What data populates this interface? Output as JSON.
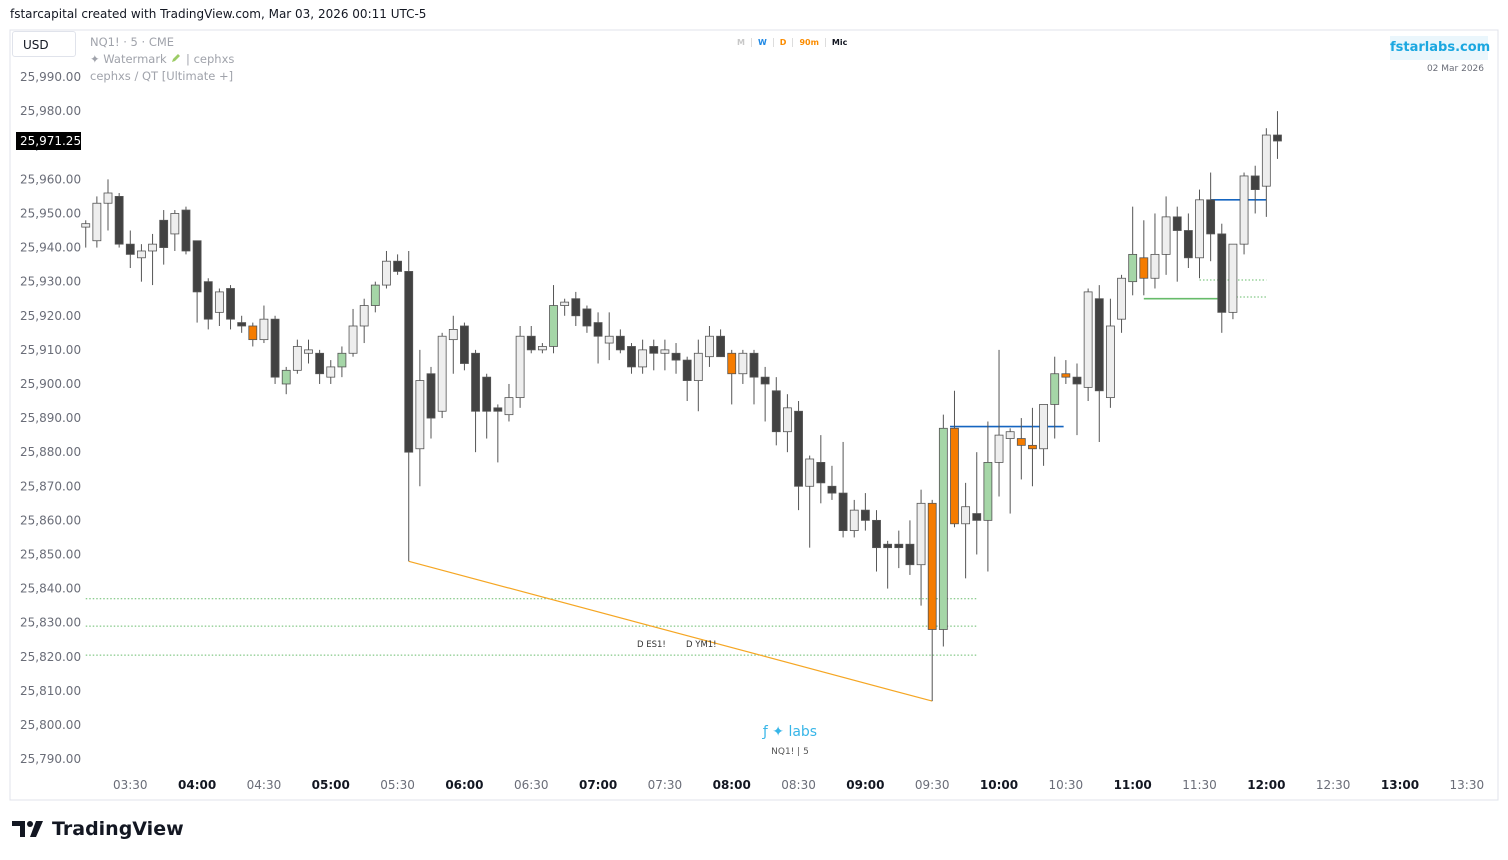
{
  "header": {
    "attribution": "fstarcapital created with TradingView.com, Mar 03, 2026 00:11 UTC-5"
  },
  "toolbar": {
    "currency": "USD"
  },
  "legend": {
    "symbol": "NQ1! · 5 · CME",
    "watermark": "✦ Watermark",
    "watermark_author": "| cephxs",
    "indicator": "cephxs / QT [Ultimate +]"
  },
  "timeframes": [
    {
      "label": "M",
      "color": "#c8c8c8"
    },
    {
      "label": "W",
      "color": "#1e88e5"
    },
    {
      "label": "D",
      "color": "#fb8c00"
    },
    {
      "label": "90m",
      "color": "#fb8c00"
    },
    {
      "label": "Mic",
      "color": "#131722"
    }
  ],
  "brand": {
    "site": "fstarlabs.com",
    "date": "02 Mar 2026",
    "logo": "ƒ ✦ labs",
    "caption": "NQ1! | 5"
  },
  "annotations": [
    "D ES1!",
    "D YM1!"
  ],
  "footer": {
    "brand": "TradingView"
  },
  "chart_data": {
    "type": "candlestick",
    "xlim": [
      "02:36",
      "13:44"
    ],
    "xticks": [
      "03:30",
      "04:00",
      "04:30",
      "05:00",
      "05:30",
      "06:00",
      "06:30",
      "07:00",
      "07:30",
      "08:00",
      "08:30",
      "09:00",
      "09:30",
      "10:00",
      "10:30",
      "11:00",
      "11:30",
      "12:00",
      "12:30",
      "13:00",
      "13:30"
    ],
    "ylim": [
      25778,
      26003.8
    ],
    "yticks": [
      {
        "value": 25790,
        "label": "25,790.00"
      },
      {
        "value": 25800,
        "label": "25,800.00"
      },
      {
        "value": 25810,
        "label": "25,810.00"
      },
      {
        "value": 25820,
        "label": "25,820.00"
      },
      {
        "value": 25830,
        "label": "25,830.00"
      },
      {
        "value": 25840,
        "label": "25,840.00"
      },
      {
        "value": 25850,
        "label": "25,850.00"
      },
      {
        "value": 25860,
        "label": "25,860.00"
      },
      {
        "value": 25870,
        "label": "25,870.00"
      },
      {
        "value": 25880,
        "label": "25,880.00"
      },
      {
        "value": 25890,
        "label": "25,890.00"
      },
      {
        "value": 25900,
        "label": "25,900.00"
      },
      {
        "value": 25910,
        "label": "25,910.00"
      },
      {
        "value": 25920,
        "label": "25,920.00"
      },
      {
        "value": 25930,
        "label": "25,930.00"
      },
      {
        "value": 25940,
        "label": "25,940.00"
      },
      {
        "value": 25950,
        "label": "25,950.00"
      },
      {
        "value": 25960,
        "label": "25,960.00"
      },
      {
        "value": 25970,
        "label": "25,970.00"
      },
      {
        "value": 25980,
        "label": "25,980.00"
      },
      {
        "value": 25990,
        "label": "25,990.00"
      }
    ],
    "last_price": {
      "value": 25971.25,
      "label": "25,971.25"
    },
    "x": [
      "03:10",
      "03:15",
      "03:20",
      "03:25",
      "03:30",
      "03:35",
      "03:40",
      "03:45",
      "03:50",
      "03:55",
      "04:00",
      "04:05",
      "04:10",
      "04:15",
      "04:20",
      "04:25",
      "04:30",
      "04:35",
      "04:40",
      "04:45",
      "04:50",
      "04:55",
      "05:00",
      "05:05",
      "05:10",
      "05:15",
      "05:20",
      "05:25",
      "05:30",
      "05:35",
      "05:40",
      "05:45",
      "05:50",
      "05:55",
      "06:00",
      "06:05",
      "06:10",
      "06:15",
      "06:20",
      "06:25",
      "06:30",
      "06:35",
      "06:40",
      "06:45",
      "06:50",
      "06:55",
      "07:00",
      "07:05",
      "07:10",
      "07:15",
      "07:20",
      "07:25",
      "07:30",
      "07:35",
      "07:40",
      "07:45",
      "07:50",
      "07:55",
      "08:00",
      "08:05",
      "08:10",
      "08:15",
      "08:20",
      "08:25",
      "08:30",
      "08:35",
      "08:40",
      "08:45",
      "08:50",
      "08:55",
      "09:00",
      "09:05",
      "09:10",
      "09:15",
      "09:20",
      "09:25",
      "09:30",
      "09:35",
      "09:40",
      "09:45",
      "09:50",
      "09:55",
      "10:00",
      "10:05",
      "10:10",
      "10:15",
      "10:20",
      "10:25",
      "10:30",
      "10:35",
      "10:40",
      "10:45",
      "10:50",
      "10:55",
      "11:00",
      "11:05",
      "11:10",
      "11:15",
      "11:20",
      "11:25",
      "11:30",
      "11:35",
      "11:40",
      "11:45",
      "11:50",
      "11:55",
      "12:00",
      "12:05"
    ],
    "series": [
      {
        "open": [
          25946,
          25942,
          25953,
          25955,
          25941,
          25937,
          25939,
          25948,
          25944,
          25951,
          25942,
          25930,
          25921,
          25928,
          25918,
          25917,
          25913,
          25919,
          25900,
          25904,
          25910,
          25909,
          25902,
          25905,
          25909,
          25917,
          25923,
          25929,
          25936,
          25933,
          25881,
          25903,
          25892,
          25913,
          25917,
          25909,
          25902,
          25893,
          25891,
          25896,
          25914,
          25910,
          25911,
          25923,
          25925,
          25922,
          25918,
          25912,
          25914,
          25911,
          25905,
          25911,
          25909,
          25909,
          25907,
          25901,
          25908,
          25914,
          25909,
          25903,
          25909,
          25902,
          25898,
          25886,
          25892,
          25870,
          25877,
          25870,
          25868,
          25857,
          25863,
          25860,
          25853,
          25853,
          25853,
          25847,
          25865,
          25828,
          25887,
          25859,
          25862,
          25860,
          25877,
          25884,
          25884,
          25882,
          25881,
          25894,
          25903,
          25902,
          25899,
          25925,
          25896,
          25919,
          25930,
          25937,
          25931,
          25938,
          25949,
          25945,
          25937,
          25954,
          25944,
          25921,
          25941,
          25961,
          25958,
          25973
        ],
        "high": [
          25948,
          25955,
          25960,
          25956,
          25945,
          25941,
          25944,
          25951,
          25951,
          25952,
          25942,
          25931,
          25928,
          25929,
          25920,
          25918,
          25923,
          25920,
          25905,
          25913,
          25913,
          25910,
          25907,
          25911,
          25922,
          25925,
          25930,
          25939,
          25938,
          25939,
          25910,
          25905,
          25915,
          25920,
          25918,
          25910,
          25903,
          25894,
          25900,
          25917,
          25917,
          25912,
          25929,
          25925,
          25927,
          25923,
          25921,
          25921,
          25916,
          25912,
          25913,
          25913,
          25913,
          25912,
          25908,
          25913,
          25917,
          25916,
          25910,
          25910,
          25910,
          25905,
          25902,
          25897,
          25895,
          25879,
          25885,
          25876,
          25883,
          25866,
          25868,
          25863,
          25854,
          25857,
          25860,
          25869,
          25866,
          25891,
          25898,
          25871,
          25880,
          25889,
          25910,
          25887,
          25890,
          25893,
          25893,
          25908,
          25907,
          25906,
          25928,
          25929,
          25925,
          25932,
          25952,
          25948,
          25950,
          25955,
          25952,
          25950,
          25957,
          25962,
          25947,
          25941,
          25962,
          25964,
          25975,
          25980
        ],
        "low": [
          25940,
          25940,
          25945,
          25940,
          25934,
          25930,
          25929,
          25935,
          25939,
          25938,
          25918,
          25916,
          25917,
          25916,
          25915,
          25911,
          25912,
          25900,
          25897,
          25903,
          25906,
          25900,
          25900,
          25902,
          25908,
          25912,
          25921,
          25928,
          25932,
          25848,
          25870,
          25884,
          25890,
          25903,
          25904,
          25880,
          25884,
          25877,
          25889,
          25893,
          25909,
          25909,
          25909,
          25920,
          25917,
          25915,
          25906,
          25907,
          25909,
          25903,
          25903,
          25904,
          25904,
          25903,
          25895,
          25892,
          25905,
          25908,
          25894,
          25900,
          25894,
          25889,
          25882,
          25880,
          25863,
          25852,
          25865,
          25866,
          25855,
          25855,
          25857,
          25845,
          25840,
          25846,
          25844,
          25835,
          25807,
          25823,
          25858,
          25843,
          25850,
          25845,
          25867,
          25862,
          25872,
          25870,
          25876,
          25884,
          25900,
          25885,
          25895,
          25883,
          25893,
          25915,
          25926,
          25926,
          25928,
          25932,
          25930,
          25934,
          25931,
          25936,
          25915,
          25919,
          25938,
          25950,
          25949,
          25966
        ],
        "close": [
          25947,
          25953,
          25956,
          25941,
          25938,
          25939,
          25941,
          25940,
          25950,
          25939,
          25927,
          25919,
          25927,
          25919,
          25917,
          25913,
          25919,
          25902,
          25904,
          25911,
          25909,
          25903,
          25905,
          25909,
          25917,
          25923,
          25929,
          25936,
          25933,
          25880,
          25901,
          25890,
          25914,
          25916,
          25906,
          25892,
          25892,
          25892,
          25896,
          25914,
          25910,
          25911,
          25923,
          25924,
          25920,
          25917,
          25914,
          25914,
          25910,
          25905,
          25910,
          25909,
          25910,
          25907,
          25901,
          25909,
          25914,
          25908,
          25903,
          25909,
          25902,
          25900,
          25886,
          25893,
          25870,
          25878,
          25871,
          25868,
          25857,
          25863,
          25860,
          25852,
          25852,
          25852,
          25847,
          25865,
          25828,
          25887,
          25859,
          25864,
          25860,
          25877,
          25885,
          25886,
          25882,
          25881,
          25894,
          25903,
          25902,
          25900,
          25927,
          25898,
          25917,
          25931,
          25938,
          25931,
          25938,
          25949,
          25945,
          25937,
          25954,
          25944,
          25921,
          25941,
          25961,
          25957,
          25973,
          25971.25
        ],
        "colors": [
          "#eeeeee",
          "#eeeeee",
          "#eeeeee",
          "#424242",
          "#424242",
          "#eeeeee",
          "#eeeeee",
          "#424242",
          "#eeeeee",
          "#424242",
          "#424242",
          "#424242",
          "#eeeeee",
          "#424242",
          "#424242",
          "#f57c00",
          "#eeeeee",
          "#424242",
          "#a5d6a7",
          "#eeeeee",
          "#eeeeee",
          "#424242",
          "#eeeeee",
          "#a5d6a7",
          "#eeeeee",
          "#eeeeee",
          "#a5d6a7",
          "#eeeeee",
          "#424242",
          "#424242",
          "#eeeeee",
          "#424242",
          "#eeeeee",
          "#eeeeee",
          "#424242",
          "#424242",
          "#424242",
          "#424242",
          "#eeeeee",
          "#eeeeee",
          "#424242",
          "#eeeeee",
          "#a5d6a7",
          "#eeeeee",
          "#424242",
          "#424242",
          "#424242",
          "#eeeeee",
          "#424242",
          "#424242",
          "#eeeeee",
          "#424242",
          "#eeeeee",
          "#424242",
          "#424242",
          "#eeeeee",
          "#eeeeee",
          "#424242",
          "#f57c00",
          "#eeeeee",
          "#424242",
          "#424242",
          "#424242",
          "#eeeeee",
          "#424242",
          "#eeeeee",
          "#424242",
          "#424242",
          "#424242",
          "#eeeeee",
          "#424242",
          "#424242",
          "#424242",
          "#424242",
          "#424242",
          "#eeeeee",
          "#f57c00",
          "#a5d6a7",
          "#f57c00",
          "#eeeeee",
          "#424242",
          "#a5d6a7",
          "#eeeeee",
          "#eeeeee",
          "#f57c00",
          "#f57c00",
          "#eeeeee",
          "#a5d6a7",
          "#f57c00",
          "#424242",
          "#eeeeee",
          "#424242",
          "#eeeeee",
          "#eeeeee",
          "#a5d6a7",
          "#f57c00",
          "#eeeeee",
          "#eeeeee",
          "#424242",
          "#424242",
          "#eeeeee",
          "#424242",
          "#424242",
          "#eeeeee",
          "#eeeeee",
          "#424242",
          "#eeeeee",
          "#424242"
        ]
      }
    ],
    "lines": [
      {
        "x": [
          "05:35",
          "09:30"
        ],
        "y": [
          25848,
          25807
        ],
        "color": "#f5a623",
        "style": "solid"
      }
    ],
    "levels": [
      {
        "y": 25837,
        "x": [
          "03:10",
          "09:50"
        ],
        "color": "#66bb6a",
        "style": "dotted"
      },
      {
        "y": 25829,
        "x": [
          "03:10",
          "09:50"
        ],
        "color": "#66bb6a",
        "style": "dotted"
      },
      {
        "y": 25820.5,
        "x": [
          "03:10",
          "09:50"
        ],
        "color": "#66bb6a",
        "style": "dotted"
      },
      {
        "y": 25887.5,
        "x": [
          "09:38",
          "10:29"
        ],
        "color": "#1565c0",
        "style": "solid"
      },
      {
        "y": 25954,
        "x": [
          "11:35",
          "12:00"
        ],
        "color": "#1565c0",
        "style": "solid"
      },
      {
        "y": 25925,
        "x": [
          "11:05",
          "11:40"
        ],
        "color": "#66bb6a",
        "style": "solid"
      },
      {
        "y": 25930.5,
        "x": [
          "11:30",
          "12:00"
        ],
        "color": "#66bb6a",
        "style": "dotted"
      },
      {
        "y": 25925.5,
        "x": [
          "11:45",
          "12:00"
        ],
        "color": "#66bb6a",
        "style": "dotted"
      }
    ]
  }
}
